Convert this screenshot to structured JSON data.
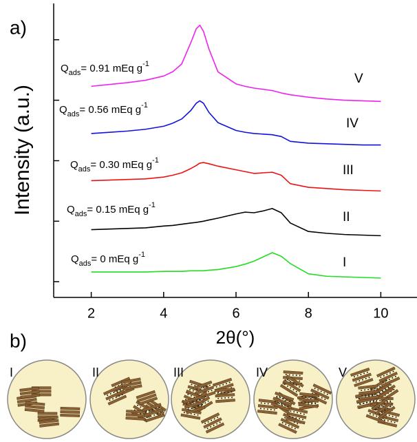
{
  "panel_labels": [
    "a)",
    "b)"
  ],
  "chart_data": {
    "type": "line",
    "ylabel": "Intensity (a.u.)",
    "xlabel": "2θ(°)",
    "xlim": [
      1,
      11
    ],
    "xticks": [
      2,
      4,
      6,
      8,
      10
    ],
    "ylim": [
      0.74,
      5.6
    ],
    "yticks": [
      1,
      2,
      3,
      4,
      5
    ],
    "x": [
      2,
      2.5,
      3,
      3.5,
      4,
      4.25,
      4.5,
      4.75,
      4.9,
      5,
      5.1,
      5.25,
      5.5,
      6,
      6.25,
      6.5,
      6.75,
      7,
      7.25,
      7.5,
      8,
      8.5,
      9,
      9.5,
      10
    ],
    "series": [
      {
        "name": "I",
        "color": "#22dd22",
        "label": [
          "Q",
          "ads",
          "= 0 mEq g",
          "-1"
        ],
        "values": [
          1.16,
          1.16,
          1.16,
          1.16,
          1.17,
          1.17,
          1.17,
          1.18,
          1.18,
          1.18,
          1.18,
          1.19,
          1.2,
          1.25,
          1.29,
          1.34,
          1.41,
          1.48,
          1.42,
          1.3,
          1.13,
          1.09,
          1.08,
          1.07,
          1.06
        ]
      },
      {
        "name": "II",
        "color": "#000000",
        "label": [
          "Q",
          "ads",
          "= 0.15 mEq g",
          "-1"
        ],
        "values": [
          1.86,
          1.87,
          1.88,
          1.89,
          1.92,
          1.93,
          1.95,
          1.97,
          1.98,
          1.99,
          2.0,
          2.02,
          2.05,
          2.12,
          2.15,
          2.14,
          2.17,
          2.21,
          2.14,
          1.97,
          1.83,
          1.8,
          1.78,
          1.77,
          1.76
        ]
      },
      {
        "name": "III",
        "color": "#ee1111",
        "label": [
          "Q",
          "ads",
          "= 0.30 mEq g",
          "-1"
        ],
        "values": [
          2.67,
          2.68,
          2.69,
          2.7,
          2.73,
          2.76,
          2.8,
          2.87,
          2.92,
          2.96,
          2.97,
          2.95,
          2.91,
          2.85,
          2.82,
          2.79,
          2.8,
          2.81,
          2.76,
          2.62,
          2.56,
          2.54,
          2.52,
          2.51,
          2.5
        ]
      },
      {
        "name": "IV",
        "color": "#1111dd",
        "label": [
          "Q",
          "ads",
          "= 0.56 mEq g",
          "-1"
        ],
        "values": [
          3.45,
          3.47,
          3.49,
          3.52,
          3.57,
          3.62,
          3.69,
          3.83,
          3.95,
          3.99,
          3.95,
          3.8,
          3.63,
          3.5,
          3.47,
          3.45,
          3.44,
          3.43,
          3.4,
          3.32,
          3.29,
          3.28,
          3.27,
          3.26,
          3.26
        ]
      },
      {
        "name": "V",
        "color": "#ee22ee",
        "label": [
          "Q",
          "ads",
          "= 0.91 mEq g",
          "-1"
        ],
        "values": [
          4.23,
          4.26,
          4.29,
          4.33,
          4.4,
          4.47,
          4.6,
          4.95,
          5.18,
          5.24,
          5.14,
          4.85,
          4.47,
          4.27,
          4.23,
          4.2,
          4.18,
          4.16,
          4.12,
          4.09,
          4.05,
          4.02,
          4.0,
          3.99,
          3.98
        ]
      }
    ]
  }
}
